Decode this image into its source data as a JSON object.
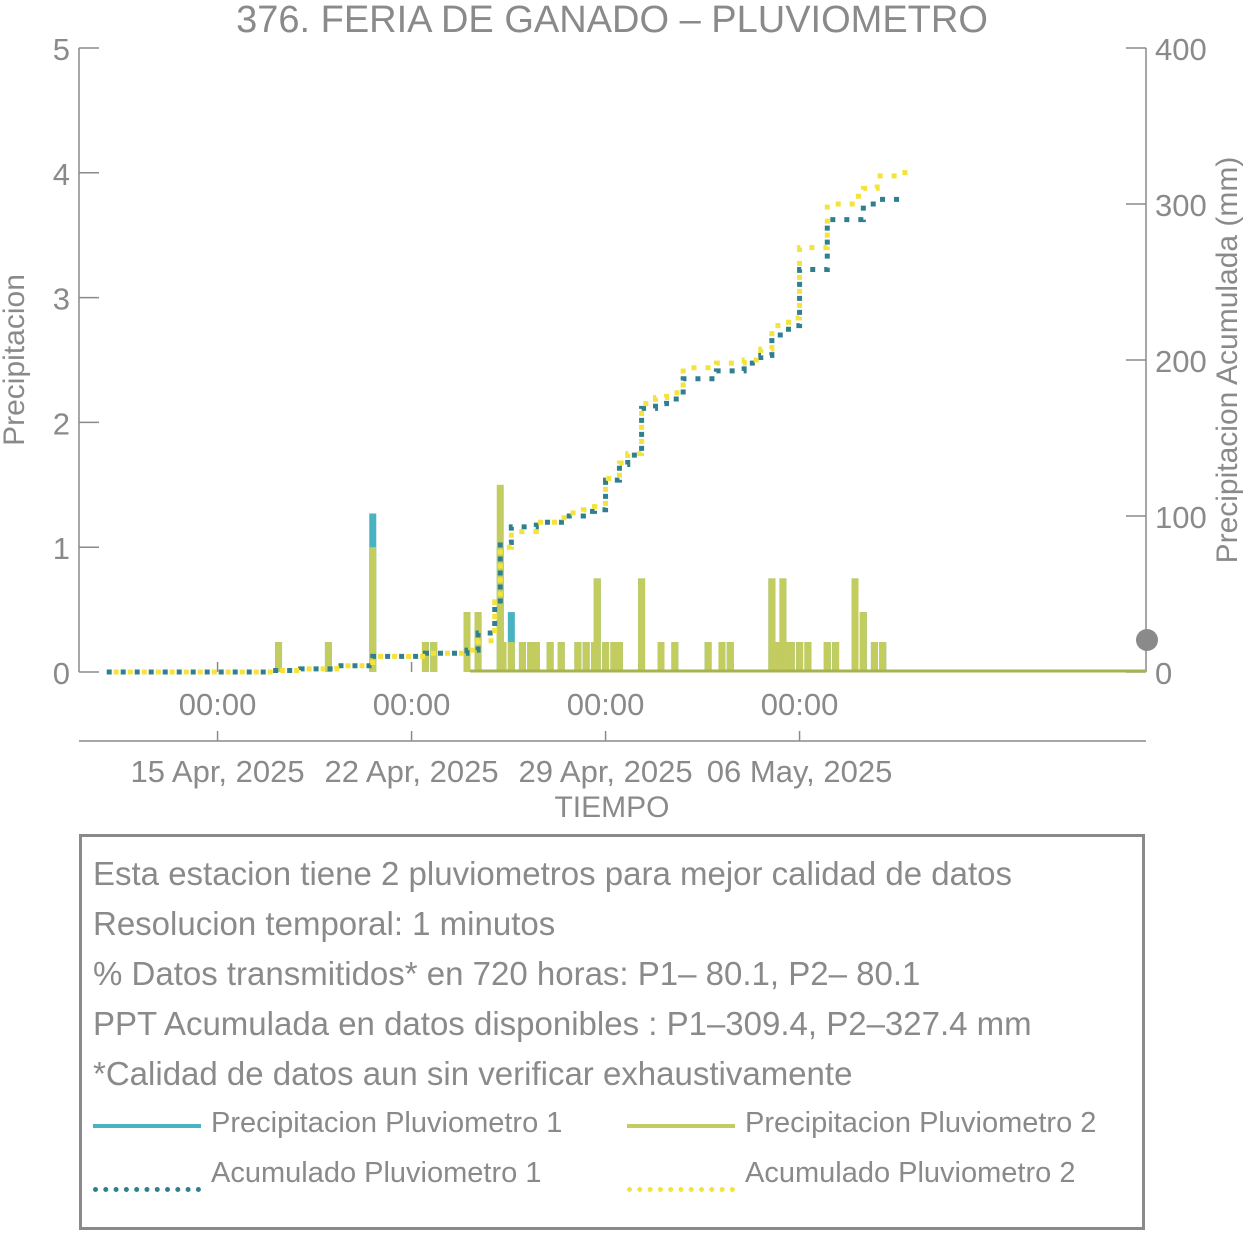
{
  "chart_data": {
    "type": "line",
    "title": "376. FERIA DE GANADO – PLUVIOMETRO",
    "xlabel": "TIEMPO",
    "ylabel": "Precipitacion",
    "y2label": "Precipitacion Acumulada (mm)",
    "ylim": [
      0,
      5
    ],
    "y2lim": [
      0,
      400
    ],
    "yticks": [
      "0",
      "1",
      "2",
      "3",
      "4",
      "5"
    ],
    "y2ticks": [
      "0",
      "100",
      "200",
      "300",
      "400"
    ],
    "xlim_days": [
      -5,
      33.5
    ],
    "xticks": [
      {
        "day": 0,
        "time": "00:00",
        "date": "15 Apr, 2025"
      },
      {
        "day": 7,
        "time": "00:00",
        "date": "22 Apr, 2025"
      },
      {
        "day": 14,
        "time": "00:00",
        "date": "29 Apr, 2025"
      },
      {
        "day": 21,
        "time": "00:00",
        "date": "06 May, 2025"
      }
    ],
    "colors": {
      "p1": "#4ab3c2",
      "p2": "#c3cc5e",
      "a1": "#2f7f8f",
      "a2": "#f3e33a",
      "text": "#8a8a8a"
    },
    "series": [
      {
        "name": "Precipitacion Pluviometro 1",
        "axis": "left",
        "style": "bars",
        "x": [
          2.2,
          4.0,
          5.6,
          7.5,
          7.8,
          9.0,
          9.4,
          10.2,
          10.3,
          10.6,
          11.0,
          11.3,
          11.5,
          12.0,
          12.4,
          13.0,
          13.3,
          13.6,
          13.7,
          14.0,
          14.3,
          14.5,
          15.3,
          16.0,
          16.5,
          17.7,
          18.2,
          18.5,
          20.0,
          20.2,
          20.4,
          20.5,
          20.7,
          21.0,
          21.3,
          22.0,
          22.3,
          23.0,
          23.3,
          23.7,
          24.0
        ],
        "y": [
          0.24,
          0.24,
          1.27,
          0.24,
          0.24,
          0.48,
          0.48,
          1.0,
          0.24,
          0.48,
          0.24,
          0.24,
          0.24,
          0.24,
          0.24,
          0.24,
          0.24,
          0.24,
          0.75,
          0.24,
          0.24,
          0.24,
          0.75,
          0.24,
          0.24,
          0.24,
          0.24,
          0.24,
          0.75,
          0.24,
          0.75,
          0.24,
          0.24,
          0.24,
          0.24,
          0.24,
          0.24,
          0.75,
          0.48,
          0.24,
          0.24
        ]
      },
      {
        "name": "Precipitacion Pluviometro 2",
        "axis": "left",
        "style": "bars",
        "x": [
          2.2,
          4.0,
          5.6,
          7.5,
          7.8,
          9.0,
          9.4,
          10.2,
          10.3,
          10.6,
          11.0,
          11.3,
          11.5,
          12.0,
          12.4,
          13.0,
          13.3,
          13.6,
          13.7,
          14.0,
          14.3,
          14.5,
          15.3,
          16.0,
          16.5,
          17.7,
          18.2,
          18.5,
          20.0,
          20.2,
          20.4,
          20.5,
          20.7,
          21.0,
          21.3,
          22.0,
          22.3,
          23.0,
          23.3,
          23.7,
          24.0
        ],
        "y": [
          0.24,
          0.24,
          1.0,
          0.24,
          0.24,
          0.48,
          0.48,
          1.5,
          0.24,
          0.24,
          0.24,
          0.24,
          0.24,
          0.24,
          0.24,
          0.24,
          0.24,
          0.24,
          0.75,
          0.24,
          0.24,
          0.24,
          0.75,
          0.24,
          0.24,
          0.24,
          0.24,
          0.24,
          0.75,
          0.24,
          0.75,
          0.24,
          0.24,
          0.24,
          0.24,
          0.24,
          0.24,
          0.75,
          0.48,
          0.24,
          0.24
        ]
      },
      {
        "name": "Acumulado Pluviometro 1",
        "axis": "right",
        "style": "dotted",
        "x": [
          -4,
          0.5,
          2.0,
          3.0,
          4.3,
          5.6,
          7.5,
          9.0,
          9.4,
          10.0,
          10.2,
          10.6,
          11.5,
          12.5,
          13.2,
          13.6,
          14.0,
          14.5,
          14.8,
          15.3,
          15.8,
          16.2,
          16.8,
          18.0,
          19.0,
          19.6,
          20.0,
          20.6,
          21.0,
          22.0,
          23.0,
          23.3,
          23.8,
          24.8
        ],
        "y": [
          0,
          0,
          1,
          2,
          4,
          10,
          12,
          14,
          25,
          42,
          83,
          93,
          96,
          100,
          103,
          104,
          123,
          133,
          139,
          169,
          172,
          175,
          188,
          193,
          198,
          203,
          216,
          222,
          258,
          290,
          290,
          300,
          303,
          303
        ]
      },
      {
        "name": "Acumulado Pluviometro 2",
        "axis": "right",
        "style": "dotted",
        "x": [
          -4,
          0.5,
          2.0,
          3.0,
          4.3,
          5.6,
          7.5,
          9.0,
          9.4,
          10.0,
          10.2,
          10.6,
          11.5,
          12.5,
          13.2,
          13.6,
          14.0,
          14.5,
          14.8,
          15.3,
          15.8,
          16.2,
          16.8,
          18.0,
          19.0,
          19.6,
          20.0,
          20.6,
          21.0,
          22.0,
          23.0,
          23.3,
          23.8,
          24.8
        ],
        "y": [
          0,
          0,
          1,
          2,
          4,
          10,
          12,
          14,
          20,
          45,
          80,
          90,
          96,
          102,
          104,
          106,
          124,
          134,
          140,
          172,
          176,
          179,
          195,
          198,
          200,
          207,
          222,
          227,
          272,
          300,
          305,
          310,
          318,
          326
        ]
      }
    ]
  },
  "info": {
    "lines": [
      "Esta estacion tiene 2 pluviometros para mejor calidad de datos",
      "Resolucion temporal: 1 minutos",
      "% Datos transmitidos* en 720 horas: P1– 80.1, P2– 80.1",
      "PPT Acumulada en datos disponibles : P1–309.4, P2–327.4 mm",
      "*Calidad de datos aun sin verificar exhaustivamente"
    ],
    "legend": [
      {
        "label": "Precipitacion Pluviometro 1",
        "style": "solid",
        "color": "#4ab3c2"
      },
      {
        "label": "Precipitacion Pluviometro 2",
        "style": "solid",
        "color": "#c3cc5e"
      },
      {
        "label": "Acumulado Pluviometro 1",
        "style": "dotted",
        "color": "#2f7f8f"
      },
      {
        "label": "Acumulado Pluviometro 2",
        "style": "dotted",
        "color": "#f3e33a"
      }
    ]
  }
}
